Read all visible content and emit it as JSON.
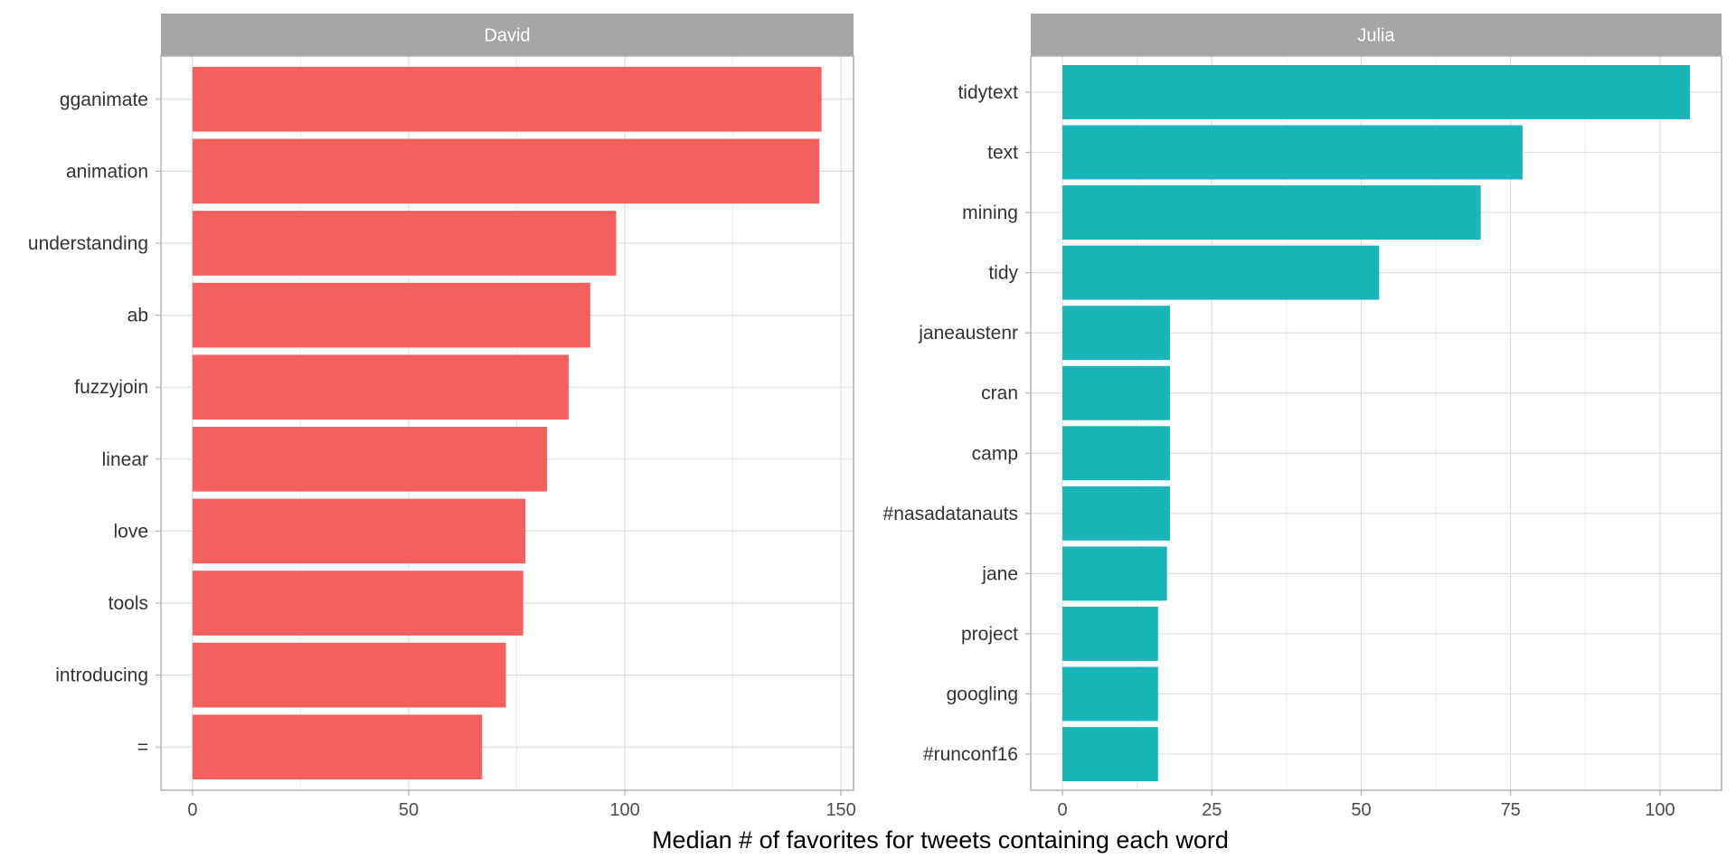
{
  "chart_data": {
    "type": "bar",
    "orientation": "horizontal",
    "xlabel": "Median # of favorites for tweets containing each word",
    "ylabel": "",
    "grid": true,
    "facets": [
      {
        "name": "David",
        "color": "#F36060",
        "categories": [
          "gganimate",
          "animation",
          "understanding",
          "ab",
          "fuzzyjoin",
          "linear",
          "love",
          "tools",
          "introducing",
          "="
        ],
        "values": [
          145.5,
          145,
          98,
          92,
          87,
          82,
          77,
          76.5,
          72.5,
          67
        ],
        "xlim": [
          -7.3,
          152.9
        ],
        "ticks": [
          0,
          50,
          100,
          150
        ],
        "minor_ticks": [
          25,
          75,
          125
        ]
      },
      {
        "name": "Julia",
        "color": "#19B5B8",
        "categories": [
          "tidytext",
          "text",
          "mining",
          "tidy",
          "janeaustenr",
          "cran",
          "camp",
          "#nasadatanauts",
          "jane",
          "project",
          "googling",
          "#runconf16"
        ],
        "values": [
          105,
          77,
          70,
          53,
          18,
          18,
          18,
          18,
          17.5,
          16,
          16,
          16
        ],
        "xlim": [
          -5.3,
          110.3
        ],
        "ticks": [
          0,
          25,
          50,
          75,
          100
        ],
        "minor_ticks": [
          12.5,
          37.5,
          62.5,
          87.5
        ]
      }
    ]
  }
}
